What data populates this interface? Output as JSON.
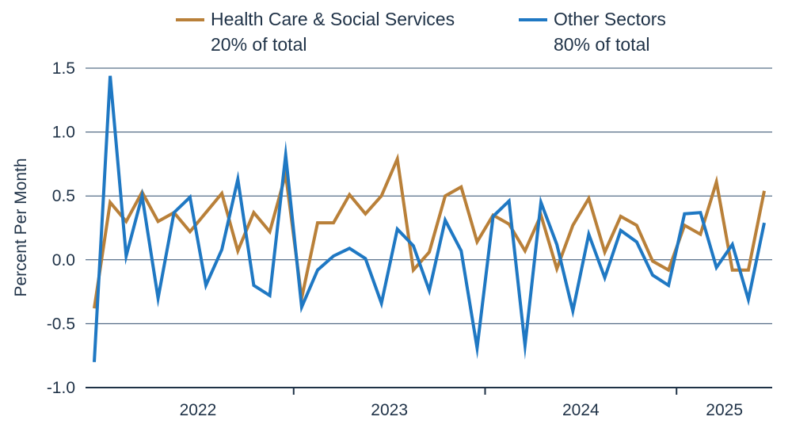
{
  "chart_data": {
    "type": "line",
    "ylabel": "Percent Per Month",
    "ylim": [
      -1.0,
      1.5
    ],
    "yticks": [
      1.5,
      1.0,
      0.5,
      0.0,
      -0.5,
      -1.0
    ],
    "ytick_labels": [
      "1.5",
      "1.0",
      "0.5",
      "0.0",
      "-0.5",
      "-1.0"
    ],
    "grid": "horizontal",
    "x_start": "2021-12",
    "x_end": "2025-06",
    "year_labels": [
      {
        "label": "2022",
        "from": "2022-01",
        "to": "2022-12"
      },
      {
        "label": "2023",
        "from": "2023-01",
        "to": "2023-12"
      },
      {
        "label": "2024",
        "from": "2024-01",
        "to": "2024-12"
      },
      {
        "label": "2025",
        "from": "2025-01",
        "to": "2025-06"
      }
    ],
    "legend_position": "top",
    "series": [
      {
        "name": "Health Care & Social Services",
        "subtitle": "20% of total",
        "color": "#b98039",
        "values": [
          -0.38,
          0.45,
          0.3,
          0.53,
          0.3,
          0.37,
          0.22,
          0.37,
          0.52,
          0.07,
          0.37,
          0.22,
          0.67,
          -0.3,
          0.29,
          0.29,
          0.51,
          0.36,
          0.5,
          0.79,
          -0.08,
          0.06,
          0.5,
          0.57,
          0.14,
          0.35,
          0.28,
          0.07,
          0.35,
          -0.07,
          0.27,
          0.48,
          0.06,
          0.34,
          0.27,
          -0.01,
          -0.08,
          0.27,
          0.2,
          0.61,
          -0.08,
          -0.08,
          0.54
        ]
      },
      {
        "name": "Other Sectors",
        "subtitle": "80% of total",
        "color": "#1f78c3",
        "values": [
          -0.8,
          1.44,
          0.03,
          0.5,
          -0.3,
          0.37,
          0.49,
          -0.2,
          0.08,
          0.63,
          -0.2,
          -0.28,
          0.82,
          -0.37,
          -0.08,
          0.03,
          0.09,
          0.01,
          -0.34,
          0.24,
          0.11,
          -0.24,
          0.31,
          0.07,
          -0.69,
          0.34,
          0.46,
          -0.67,
          0.45,
          0.12,
          -0.4,
          0.2,
          -0.14,
          0.23,
          0.14,
          -0.12,
          -0.2,
          0.36,
          0.37,
          -0.06,
          0.12,
          -0.31,
          0.29
        ]
      }
    ]
  }
}
